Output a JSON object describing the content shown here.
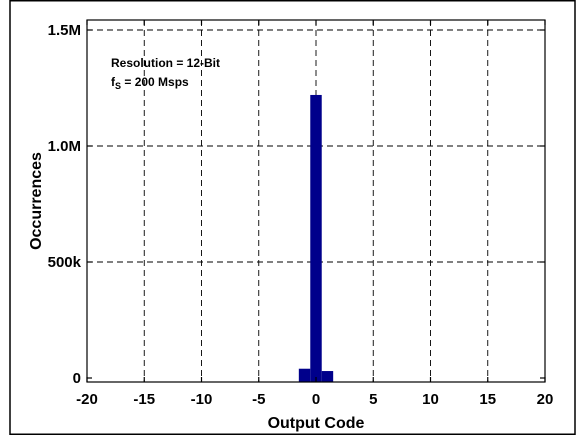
{
  "chart_data": {
    "type": "bar",
    "title": "",
    "xlabel": "Output Code",
    "ylabel": "Occurrences",
    "xlim": [
      -20,
      20
    ],
    "ylim": [
      0,
      1550000
    ],
    "xticks": [
      -20,
      -15,
      -10,
      -5,
      0,
      5,
      10,
      15,
      20
    ],
    "xtick_labels": [
      "-20",
      "-15",
      "-10",
      "-5",
      "0",
      "5",
      "10",
      "15",
      "20"
    ],
    "yticks": [
      0,
      500000,
      1000000,
      1500000
    ],
    "ytick_labels": [
      "0",
      "500k",
      "1.0M",
      "1.5M"
    ],
    "grid": true,
    "bar_color": "#00008B",
    "bars": [
      {
        "code": -1,
        "value": 40000
      },
      {
        "code": 0,
        "value": 1220000
      },
      {
        "code": 1,
        "value": 30000
      }
    ],
    "annotations": [
      {
        "text": "Resolution = 12-Bit"
      },
      {
        "prefix": "f",
        "subscript": "S",
        "suffix": " = 200 Msps"
      }
    ]
  }
}
